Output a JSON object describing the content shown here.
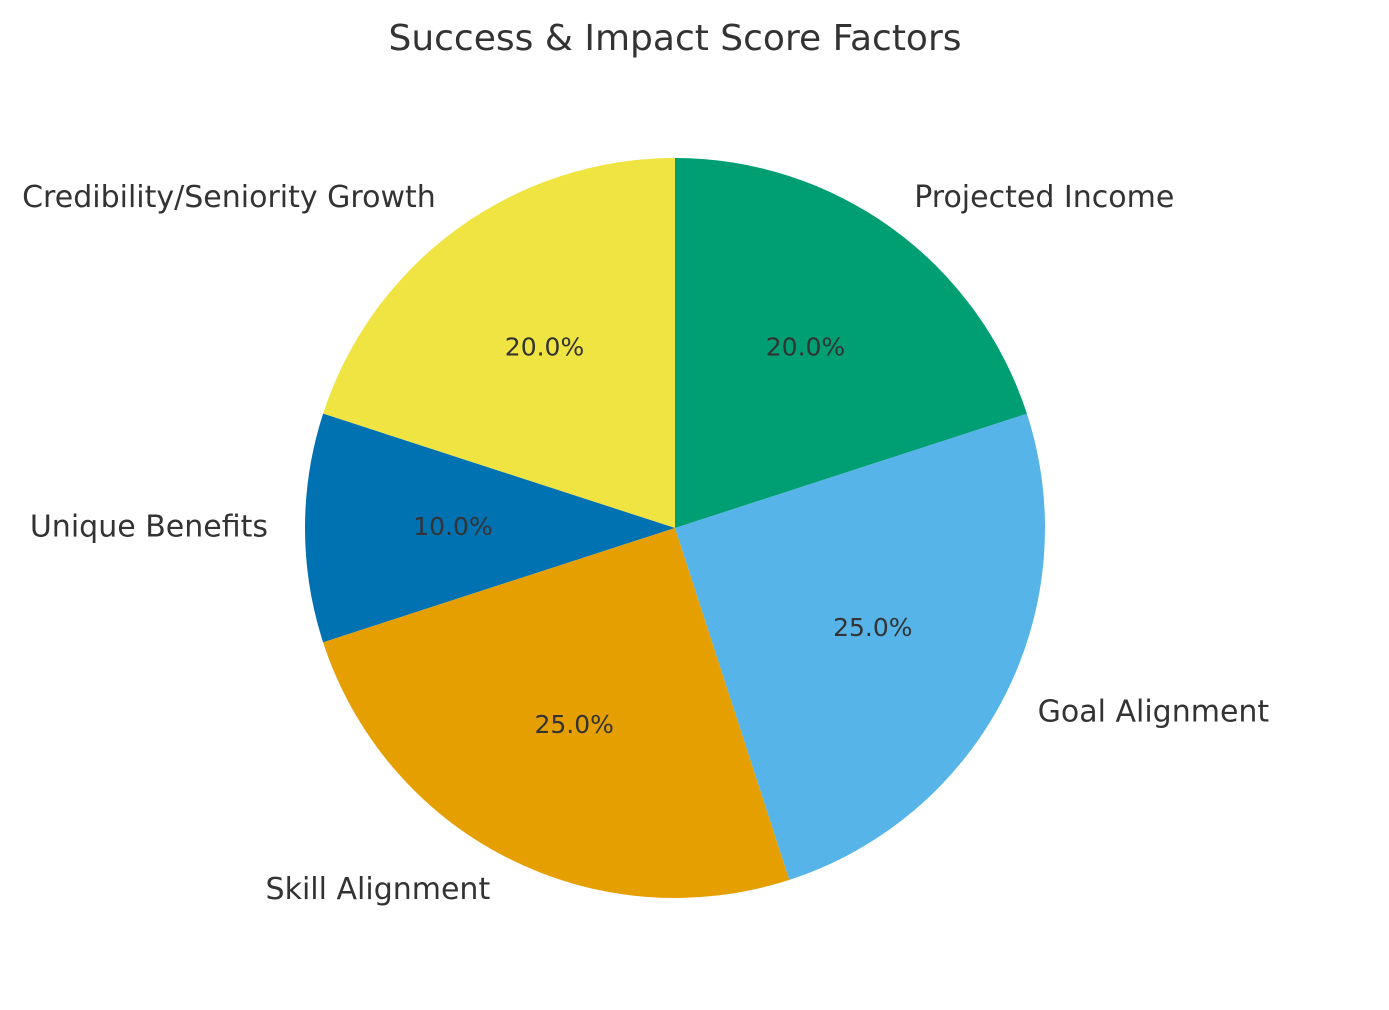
{
  "chart_data": {
    "type": "pie",
    "title": "Success & Impact Score Factors",
    "start_angle_deg": 90,
    "direction": "counterclockwise",
    "slices": [
      {
        "label": "Credibility/Seniority Growth",
        "value": 20.0,
        "pct_label": "20.0%",
        "color": "#F0E442"
      },
      {
        "label": "Unique Benefits",
        "value": 10.0,
        "pct_label": "10.0%",
        "color": "#0072B2"
      },
      {
        "label": "Skill Alignment",
        "value": 25.0,
        "pct_label": "25.0%",
        "color": "#E69F00"
      },
      {
        "label": "Goal Alignment",
        "value": 25.0,
        "pct_label": "25.0%",
        "color": "#56B4E9"
      },
      {
        "label": "Projected Income",
        "value": 20.0,
        "pct_label": "20.0%",
        "color": "#009E73"
      }
    ]
  }
}
